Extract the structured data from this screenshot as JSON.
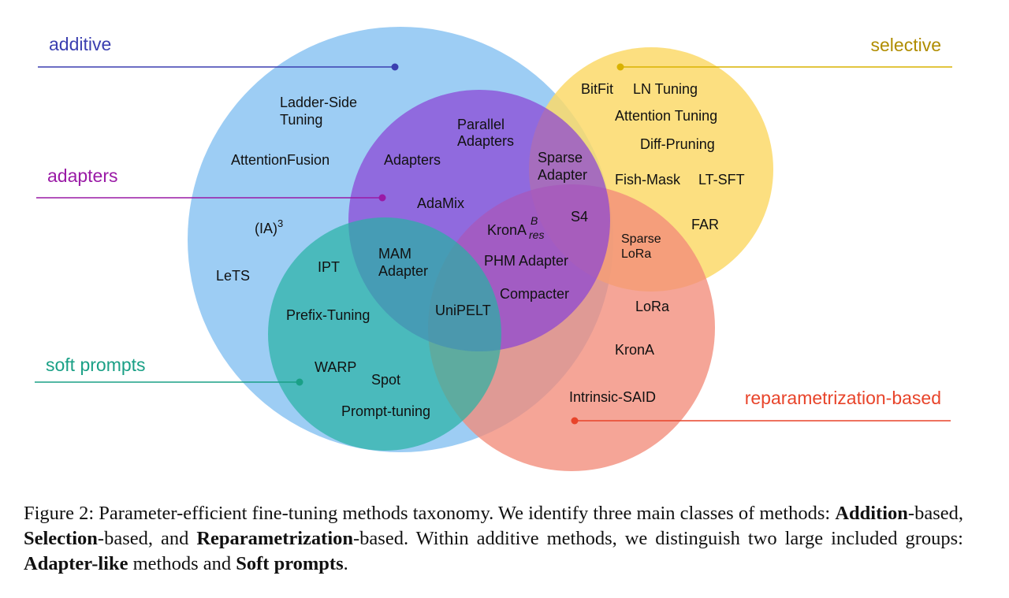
{
  "groups": {
    "additive": {
      "label": "additive",
      "color": "#3b3fb0",
      "fill": "#8cc4f2"
    },
    "selective": {
      "label": "selective",
      "color": "#b08d00",
      "fill": "#fcd96a"
    },
    "adapters": {
      "label": "adapters",
      "color": "#9a1aa6",
      "fill": "#8a44d6"
    },
    "soft_prompts": {
      "label": "soft prompts",
      "color": "#1aa086",
      "fill": "#27b2a4"
    },
    "reparametrization": {
      "label": "reparametrization-based",
      "color": "#e8442a",
      "fill": "#f28c7a"
    }
  },
  "methods": {
    "ladder_side_1": "Ladder-Side",
    "ladder_side_2": "Tuning",
    "attention_fusion": "AttentionFusion",
    "ia3_base": "(IA)",
    "ia3_sup": "3",
    "lets": "LeTS",
    "ipt": "IPT",
    "prefix_tuning": "Prefix-Tuning",
    "warp": "WARP",
    "spot": "Spot",
    "prompt_tuning": "Prompt-tuning",
    "parallel_adapters_1": "Parallel",
    "parallel_adapters_2": "Adapters",
    "adapters": "Adapters",
    "adamix": "AdaMix",
    "mam_adapter_1": "MAM",
    "mam_adapter_2": "Adapter",
    "unipelt": "UniPELT",
    "krona_res_base": "KronA",
    "krona_res_sup": "B",
    "krona_res_sub": "res",
    "phm_adapter": "PHM Adapter",
    "compacter": "Compacter",
    "sparse_adapter_1": "Sparse",
    "sparse_adapter_2": "Adapter",
    "s4": "S4",
    "bitfit": "BitFit",
    "ln_tuning": "LN Tuning",
    "attention_tuning": "Attention Tuning",
    "diff_pruning": "Diff-Pruning",
    "fish_mask": "Fish-Mask",
    "lt_sft": "LT-SFT",
    "far": "FAR",
    "sparse_lora_1": "Sparse",
    "sparse_lora_2": "LoRa",
    "lora": "LoRa",
    "krona": "KronA",
    "intrinsic_said": "Intrinsic-SAID"
  },
  "caption": {
    "p1": "Figure 2: Parameter-efficient fine-tuning methods taxonomy.  We identify three main classes of methods: ",
    "b1": "Addition",
    "p2": "-based, ",
    "b2": "Selection",
    "p3": "-based, and ",
    "b3": "Reparametrization",
    "p4": "-based.  Within additive methods, we distinguish two large included groups: ",
    "b4": "Adapter-like",
    "p5": " methods and ",
    "b5": "Soft prompts",
    "p6": "."
  }
}
